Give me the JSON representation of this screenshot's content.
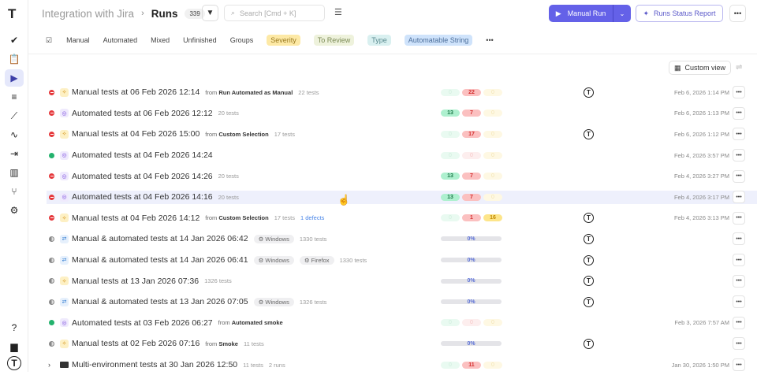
{
  "header": {
    "project": "Integration with Jira",
    "page": "Runs",
    "count": "339",
    "search_placeholder": "Search [Cmd + K]",
    "manual_run": "Manual Run",
    "status_report": "Runs Status Report"
  },
  "tabs": [
    {
      "label": "Manual"
    },
    {
      "label": "Automated"
    },
    {
      "label": "Mixed"
    },
    {
      "label": "Unfinished"
    },
    {
      "label": "Groups"
    },
    {
      "label": "Severity",
      "bg": "#fde9a6",
      "color": "#9a7a20"
    },
    {
      "label": "To Review",
      "bg": "#eef2dc",
      "color": "#7b8a55"
    },
    {
      "label": "Type",
      "bg": "#d9f0f0",
      "color": "#5a8a8f"
    },
    {
      "label": "Automatable String",
      "bg": "#cfe3fb",
      "color": "#4a6d9a"
    }
  ],
  "custom_view": "Custom view",
  "colors": {
    "accent": "#6461e8",
    "fail": "#e5383b",
    "pass": "#23b26d"
  },
  "rows": [
    {
      "status": "fail",
      "type": "manual",
      "title": "Manual tests at 06 Feb 2026 12:14",
      "from_label": "from",
      "from": "Run Automated as Manual",
      "tests": "22 tests",
      "stats": [
        "0",
        "22",
        "0"
      ],
      "on": [
        0,
        1,
        0
      ],
      "avatar": true,
      "date": "Feb 6, 2026 1:14 PM"
    },
    {
      "status": "fail",
      "type": "auto",
      "title": "Automated tests at 06 Feb 2026 12:12",
      "tests": "20 tests",
      "stats": [
        "13",
        "7",
        "0"
      ],
      "on": [
        1,
        1,
        0
      ],
      "date": "Feb 6, 2026 1:13 PM"
    },
    {
      "status": "fail",
      "type": "manual",
      "title": "Manual tests at 04 Feb 2026 15:00",
      "from_label": "from",
      "from": "Custom Selection",
      "tests": "17 tests",
      "stats": [
        "0",
        "17",
        "0"
      ],
      "on": [
        0,
        1,
        0
      ],
      "avatar": true,
      "date": "Feb 6, 2026 1:12 PM"
    },
    {
      "status": "pass",
      "type": "auto",
      "title": "Automated tests at 04 Feb 2026 14:24",
      "stats": [
        "0",
        "0",
        "0"
      ],
      "on": [
        0,
        0,
        0
      ],
      "date": "Feb 4, 2026 3:57 PM"
    },
    {
      "status": "fail",
      "type": "auto",
      "title": "Automated tests at 04 Feb 2026 14:26",
      "tests": "20 tests",
      "stats": [
        "13",
        "7",
        "0"
      ],
      "on": [
        1,
        1,
        0
      ],
      "date": "Feb 4, 2026 3:27 PM"
    },
    {
      "status": "fail",
      "type": "auto",
      "title": "Automated tests at 04 Feb 2026 14:16",
      "tests": "20 tests",
      "stats": [
        "13",
        "7",
        "0"
      ],
      "on": [
        1,
        1,
        0
      ],
      "date": "Feb 4, 2026 3:17 PM",
      "hl": true
    },
    {
      "status": "fail",
      "type": "manual",
      "title": "Manual tests at 04 Feb 2026 14:12",
      "from_label": "from",
      "from": "Custom Selection",
      "tests": "17 tests",
      "defects": "1 defects",
      "stats": [
        "0",
        "1",
        "16"
      ],
      "on": [
        0,
        1,
        1
      ],
      "avatar": true,
      "date": "Feb 4, 2026 3:13 PM"
    },
    {
      "status": "pending",
      "type": "mixed",
      "title": "Manual & automated tests at 14 Jan 2026 06:42",
      "envs": [
        "Windows"
      ],
      "tests": "1330 tests",
      "progress": "0%",
      "avatar": true
    },
    {
      "status": "pending",
      "type": "mixed",
      "title": "Manual & automated tests at 14 Jan 2026 06:41",
      "envs": [
        "Windows",
        "Firefox"
      ],
      "tests": "1330 tests",
      "progress": "0%",
      "avatar": true
    },
    {
      "status": "pending",
      "type": "manual",
      "title": "Manual tests at 13 Jan 2026 07:36",
      "tests": "1326 tests",
      "progress": "0%",
      "avatar": true
    },
    {
      "status": "pending",
      "type": "mixed",
      "title": "Manual & automated tests at 13 Jan 2026 07:05",
      "envs": [
        "Windows"
      ],
      "tests": "1326 tests",
      "progress": "0%",
      "avatar": true
    },
    {
      "status": "pass",
      "type": "auto",
      "title": "Automated tests at 03 Feb 2026 06:27",
      "from_label": "from",
      "from": "Automated smoke",
      "stats": [
        "0",
        "0",
        "0"
      ],
      "on": [
        0,
        0,
        0
      ],
      "date": "Feb 3, 2026 7:57 AM"
    },
    {
      "status": "pending",
      "type": "manual",
      "title": "Manual tests at 02 Feb 2026 07:16",
      "from_label": "from",
      "from": "Smoke",
      "tests": "11 tests",
      "progress": "0%",
      "avatar": true
    },
    {
      "status": "group",
      "type": "folder",
      "title": "Multi-environment tests at 30 Jan 2026 12:50",
      "tests": "11 tests",
      "runs": "2 runs",
      "stats": [
        "0",
        "11",
        "0"
      ],
      "on": [
        0,
        1,
        0
      ],
      "date": "Jan 30, 2026 1:50 PM"
    }
  ]
}
